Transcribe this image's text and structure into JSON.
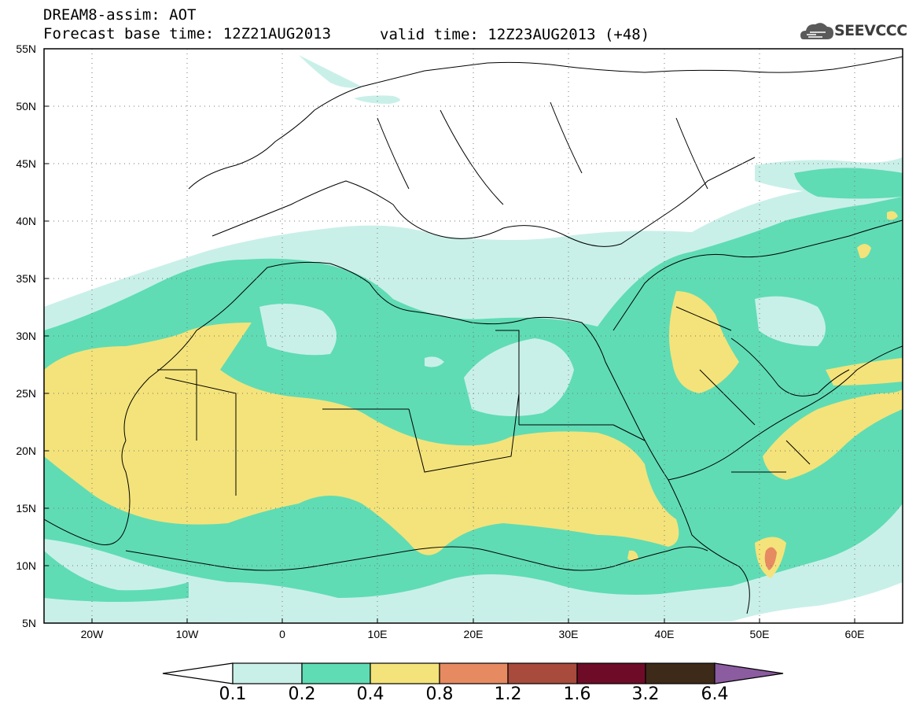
{
  "header": {
    "line1": "DREAM8-assim: AOT",
    "line2": "Forecast base time: 12Z21AUG2013",
    "valid": "valid time: 12Z23AUG2013 (+48)"
  },
  "logo": {
    "text": "SEEVCCC",
    "icon": "cloud-icon"
  },
  "axes": {
    "lat_labels": [
      "55N",
      "50N",
      "45N",
      "40N",
      "35N",
      "30N",
      "25N",
      "20N",
      "15N",
      "10N",
      "5N"
    ],
    "lon_labels": [
      "20W",
      "10W",
      "0",
      "10E",
      "20E",
      "30E",
      "40E",
      "50E",
      "60E"
    ]
  },
  "colorbar": {
    "levels": [
      "0.1",
      "0.2",
      "0.4",
      "0.8",
      "1.2",
      "1.6",
      "3.2",
      "6.4"
    ],
    "colors": [
      "#ffffff",
      "#c9f0e8",
      "#5fdcb4",
      "#f4e37a",
      "#e68a62",
      "#a84a3c",
      "#6e0c28",
      "#3e2a18",
      "#8b5ca0"
    ]
  }
}
